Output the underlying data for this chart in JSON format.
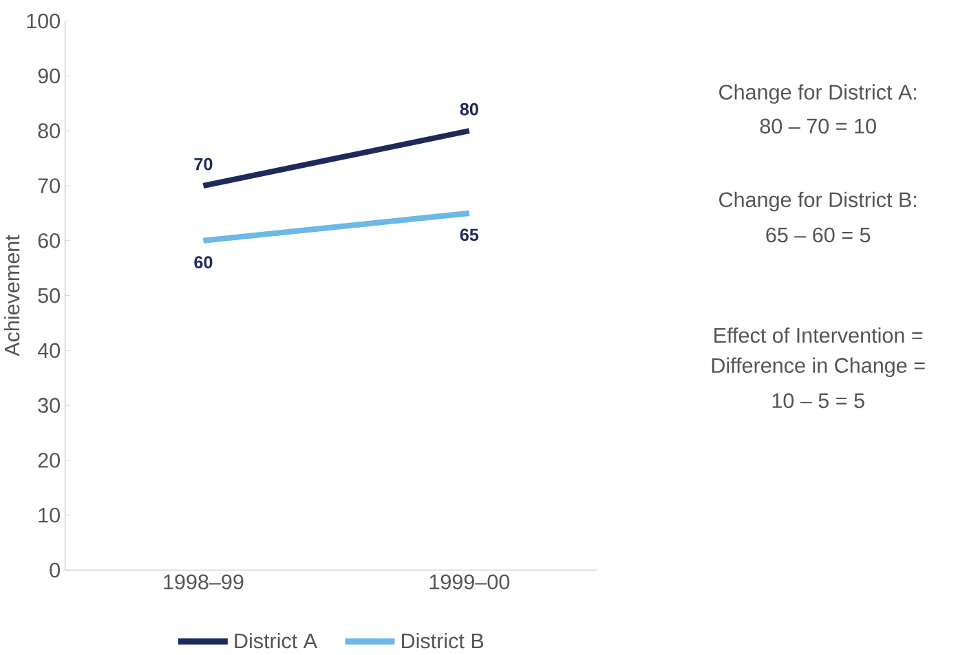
{
  "chart_data": {
    "type": "line",
    "ylabel": "Achievement",
    "categories": [
      "1998–99",
      "1999–00"
    ],
    "series": [
      {
        "name": "District A",
        "color": "#1f2a5c",
        "values": [
          70,
          80
        ]
      },
      {
        "name": "District B",
        "color": "#6cb8e6",
        "values": [
          60,
          65
        ]
      }
    ],
    "ylim": [
      0,
      100
    ],
    "yticks": [
      0,
      10,
      20,
      30,
      40,
      50,
      60,
      70,
      80,
      90,
      100
    ],
    "data_labels": true,
    "legend": "bottom",
    "grid": false,
    "marker": "none",
    "line_style": "solid",
    "annotations": [
      "Change for District A:",
      "80 – 70 = 10",
      "Change for District B:",
      "65 – 60 = 5",
      "Effect of Intervention =",
      "Difference in Change =",
      "10 – 5 = 5"
    ]
  }
}
